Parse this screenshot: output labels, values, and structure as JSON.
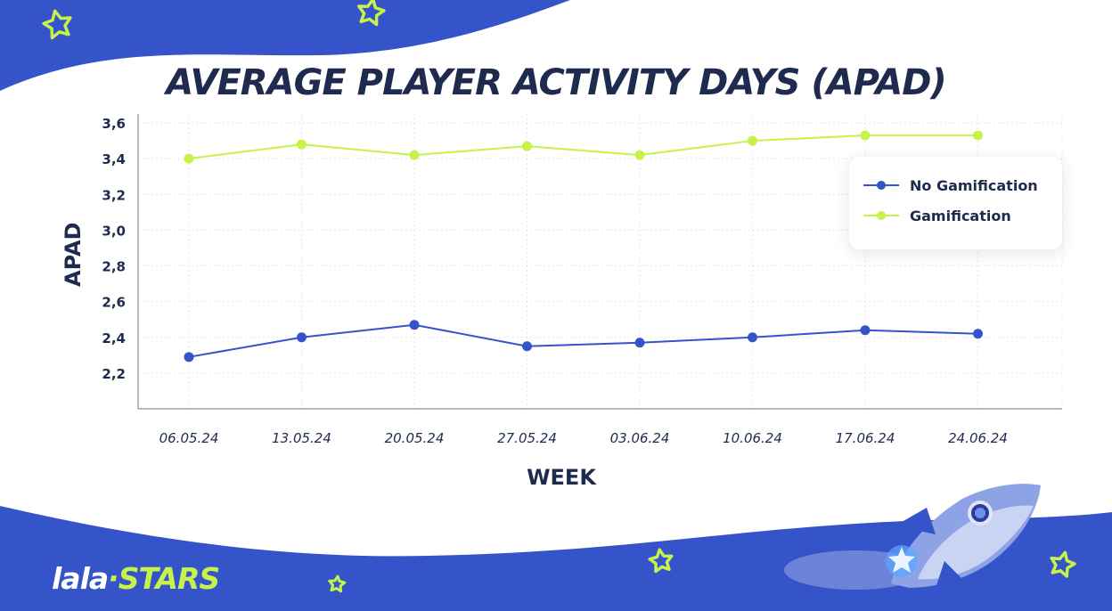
{
  "colors": {
    "background": "#ffffff",
    "brand_blue": "#3554c9",
    "accent_green": "#c6f24a",
    "text_dark": "#1f2a4f",
    "grid": "#e3e6ec"
  },
  "icons": [
    "star-icon",
    "rocket-icon"
  ],
  "brand": {
    "part1": "lala",
    "separator": "·",
    "part2": "STARS"
  },
  "chart_data": {
    "type": "line",
    "title": "AVERAGE PLAYER ACTIVITY DAYS (APAD)",
    "xlabel": "WEEK",
    "ylabel": "APAD",
    "categories": [
      "06.05.24",
      "13.05.24",
      "20.05.24",
      "27.05.24",
      "03.06.24",
      "10.06.24",
      "17.06.24",
      "24.06.24"
    ],
    "yticks": [
      "2,2",
      "2,4",
      "2,6",
      "2,8",
      "3,0",
      "3,2",
      "3,4",
      "3,6"
    ],
    "ylim": [
      2.0,
      3.6
    ],
    "grid": true,
    "legend_position": "top-right",
    "series": [
      {
        "name": "No Gamification",
        "color": "#3554c9",
        "values": [
          2.29,
          2.4,
          2.47,
          2.35,
          2.37,
          2.4,
          2.44,
          2.42
        ]
      },
      {
        "name": "Gamification",
        "color": "#c6f24a",
        "values": [
          3.4,
          3.48,
          3.42,
          3.47,
          3.42,
          3.5,
          3.53,
          3.53
        ]
      }
    ]
  }
}
